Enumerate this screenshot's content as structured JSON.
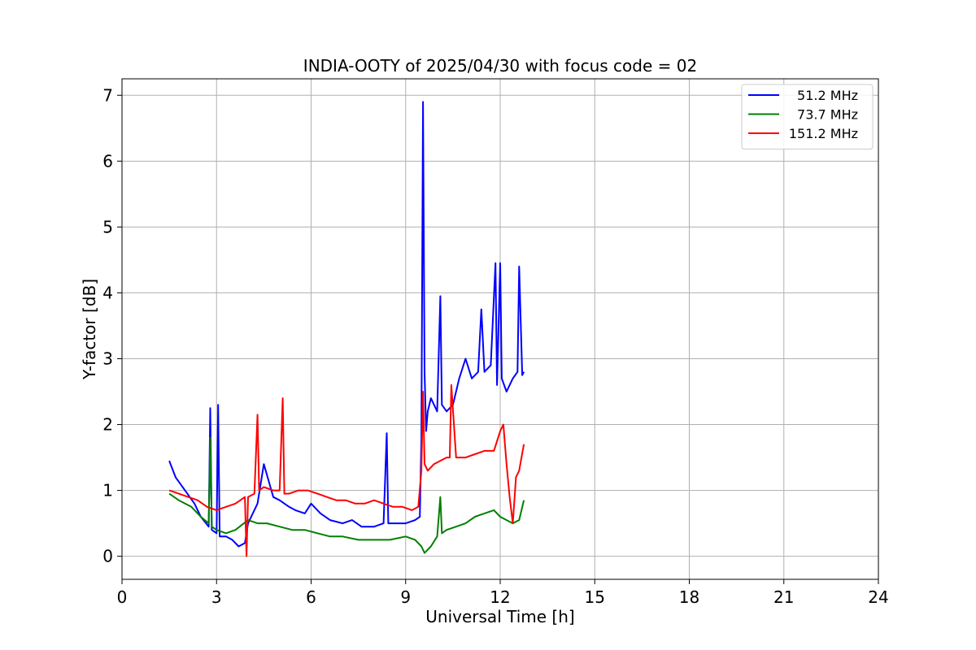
{
  "chart_data": {
    "type": "line",
    "title": "INDIA-OOTY of 2025/04/30 with focus code = 02",
    "xlabel": "Universal Time [h]",
    "ylabel": "Y-factor [dB]",
    "xlim": [
      0,
      24
    ],
    "ylim": [
      -0.35,
      7.25
    ],
    "xticks": [
      0,
      3,
      6,
      9,
      12,
      15,
      18,
      21,
      24
    ],
    "yticks": [
      0,
      1,
      2,
      3,
      4,
      5,
      6,
      7
    ],
    "grid": true,
    "legend_position": "top-right",
    "series": [
      {
        "name": "51.2 MHz",
        "color": "#0000ff",
        "x": [
          1.5,
          1.7,
          2.0,
          2.3,
          2.5,
          2.75,
          2.8,
          2.85,
          3.0,
          3.05,
          3.1,
          3.3,
          3.5,
          3.7,
          3.9,
          4.0,
          4.3,
          4.5,
          4.8,
          5.0,
          5.3,
          5.5,
          5.8,
          6.0,
          6.3,
          6.6,
          7.0,
          7.3,
          7.6,
          8.0,
          8.3,
          8.4,
          8.45,
          8.6,
          9.0,
          9.3,
          9.45,
          9.5,
          9.55,
          9.6,
          9.65,
          9.7,
          9.8,
          10.0,
          10.1,
          10.15,
          10.3,
          10.5,
          10.7,
          10.9,
          11.1,
          11.3,
          11.4,
          11.5,
          11.7,
          11.85,
          11.9,
          12.0,
          12.05,
          12.2,
          12.4,
          12.55,
          12.6,
          12.7,
          12.75
        ],
        "y": [
          1.45,
          1.2,
          1.0,
          0.8,
          0.6,
          0.45,
          2.25,
          0.4,
          0.35,
          2.3,
          0.3,
          0.3,
          0.25,
          0.15,
          0.2,
          0.5,
          0.8,
          1.4,
          0.9,
          0.85,
          0.75,
          0.7,
          0.65,
          0.8,
          0.65,
          0.55,
          0.5,
          0.55,
          0.45,
          0.45,
          0.5,
          1.87,
          0.5,
          0.5,
          0.5,
          0.55,
          0.6,
          1.8,
          6.9,
          2.8,
          1.9,
          2.2,
          2.4,
          2.2,
          3.95,
          2.3,
          2.2,
          2.3,
          2.7,
          3.0,
          2.7,
          2.8,
          3.75,
          2.8,
          2.9,
          4.45,
          2.6,
          4.45,
          2.7,
          2.5,
          2.7,
          2.8,
          4.4,
          2.75,
          2.8
        ]
      },
      {
        "name": "73.7 MHz",
        "color": "#008000",
        "x": [
          1.5,
          1.8,
          2.2,
          2.5,
          2.75,
          2.8,
          2.85,
          3.0,
          3.3,
          3.6,
          4.0,
          4.3,
          4.6,
          5.0,
          5.4,
          5.8,
          6.2,
          6.6,
          7.0,
          7.5,
          8.0,
          8.5,
          9.0,
          9.3,
          9.5,
          9.6,
          9.8,
          10.0,
          10.1,
          10.15,
          10.3,
          10.6,
          10.9,
          11.2,
          11.5,
          11.8,
          12.0,
          12.2,
          12.4,
          12.6,
          12.75
        ],
        "y": [
          0.95,
          0.85,
          0.75,
          0.6,
          0.5,
          1.8,
          0.45,
          0.4,
          0.35,
          0.4,
          0.55,
          0.5,
          0.5,
          0.45,
          0.4,
          0.4,
          0.35,
          0.3,
          0.3,
          0.25,
          0.25,
          0.25,
          0.3,
          0.25,
          0.15,
          0.05,
          0.15,
          0.3,
          0.9,
          0.35,
          0.4,
          0.45,
          0.5,
          0.6,
          0.65,
          0.7,
          0.6,
          0.55,
          0.5,
          0.55,
          0.85
        ]
      },
      {
        "name": "151.2 MHz",
        "color": "#ff0000",
        "x": [
          1.5,
          1.8,
          2.1,
          2.4,
          2.7,
          3.0,
          3.3,
          3.6,
          3.9,
          3.95,
          4.0,
          4.2,
          4.3,
          4.35,
          4.5,
          4.8,
          5.0,
          5.1,
          5.15,
          5.3,
          5.6,
          5.9,
          6.2,
          6.5,
          6.8,
          7.1,
          7.4,
          7.7,
          8.0,
          8.3,
          8.6,
          8.9,
          9.2,
          9.4,
          9.5,
          9.55,
          9.6,
          9.7,
          9.9,
          10.1,
          10.3,
          10.4,
          10.45,
          10.6,
          10.9,
          11.2,
          11.5,
          11.8,
          12.0,
          12.1,
          12.2,
          12.3,
          12.4,
          12.5,
          12.6,
          12.75
        ],
        "y": [
          1.0,
          0.95,
          0.9,
          0.85,
          0.75,
          0.7,
          0.75,
          0.8,
          0.9,
          0.0,
          0.9,
          0.95,
          2.15,
          1.0,
          1.05,
          1.0,
          1.0,
          2.4,
          0.95,
          0.95,
          1.0,
          1.0,
          0.95,
          0.9,
          0.85,
          0.85,
          0.8,
          0.8,
          0.85,
          0.8,
          0.75,
          0.75,
          0.7,
          0.75,
          1.3,
          2.5,
          1.4,
          1.3,
          1.4,
          1.45,
          1.5,
          1.5,
          2.6,
          1.5,
          1.5,
          1.55,
          1.6,
          1.6,
          1.9,
          2.0,
          1.4,
          0.9,
          0.5,
          1.2,
          1.3,
          1.7
        ]
      }
    ]
  }
}
